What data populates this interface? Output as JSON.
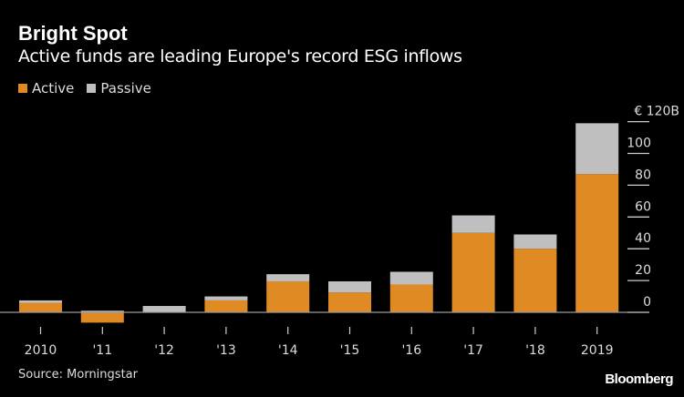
{
  "chart_data": {
    "type": "bar",
    "stacked": true,
    "title": "Bright Spot",
    "subtitle": "Active funds are leading Europe's record ESG inflows",
    "categories": [
      "2010",
      "'11",
      "'12",
      "'13",
      "'14",
      "'15",
      "'16",
      "'17",
      "'18",
      "2019"
    ],
    "series": [
      {
        "name": "Active",
        "color": "#e08a24",
        "values": [
          6,
          -6.5,
          0,
          7.5,
          19.5,
          12.5,
          17.5,
          50,
          40,
          87
        ]
      },
      {
        "name": "Passive",
        "color": "#bfbfbf",
        "values": [
          1.5,
          1,
          4,
          2.5,
          4.5,
          7,
          8,
          11,
          9,
          32
        ]
      }
    ],
    "y_ticks": [
      "0",
      "20",
      "40",
      "60",
      "80",
      "100",
      "€ 120B"
    ],
    "y_tick_values": [
      0,
      20,
      40,
      60,
      80,
      100,
      120
    ],
    "ylim": [
      -8,
      120
    ],
    "y_axis_position": "right",
    "legend_position": "top-left",
    "grid": false
  },
  "source": "Source: Morningstar",
  "logo": "Bloomberg"
}
